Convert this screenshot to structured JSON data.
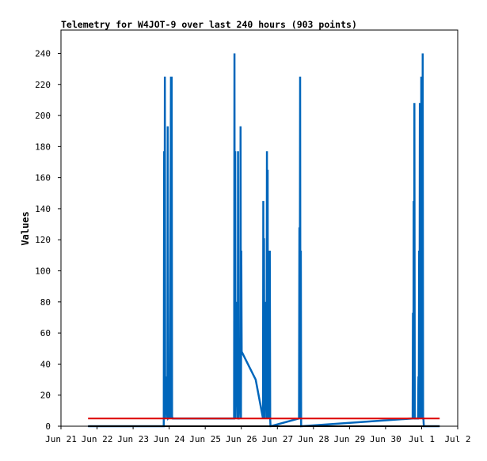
{
  "chart_data": {
    "type": "line",
    "title": "Telemetry for W4JOT-9 over last 240 hours (903 points)",
    "xlabel": "",
    "ylabel": "Values",
    "x_ticks": [
      "Jun 21",
      "Jun 22",
      "Jun 23",
      "Jun 24",
      "Jun 25",
      "Jun 26",
      "Jun 27",
      "Jun 28",
      "Jun 29",
      "Jun 30",
      "Jul 1",
      "Jul 2"
    ],
    "xlim": [
      "Jun 21 00:00",
      "Jul 2 00:00"
    ],
    "ylim": [
      0,
      255
    ],
    "y_ticks": [
      0,
      20,
      40,
      60,
      80,
      100,
      120,
      140,
      160,
      180,
      200,
      220,
      240
    ],
    "grid": false,
    "legend": "none",
    "series": [
      {
        "color": "#0066bb",
        "x_days": [
          21.75,
          23.85,
          23.86,
          23.87,
          23.88,
          23.89,
          23.9,
          23.95,
          23.96,
          23.97,
          24.02,
          24.05,
          24.06,
          24.07,
          24.08,
          24.1,
          25.8,
          25.81,
          25.82,
          25.83,
          25.84,
          25.85,
          25.9,
          25.91,
          25.92,
          25.93,
          25.97,
          25.98,
          25.99,
          26.0,
          26.01,
          26.4,
          26.6,
          26.61,
          26.62,
          26.63,
          26.64,
          26.65,
          26.7,
          26.71,
          26.72,
          26.73,
          26.74,
          26.75,
          26.78,
          26.79,
          26.8,
          26.81,
          26.82,
          27.6,
          27.61,
          27.62,
          27.63,
          27.64,
          27.65,
          27.66,
          30.75,
          30.76,
          30.77,
          30.78,
          30.79,
          30.8,
          30.81,
          30.9,
          30.91,
          30.92,
          30.93,
          30.94,
          30.95,
          30.96,
          30.97,
          30.98,
          30.99,
          31.0,
          31.01,
          31.02,
          31.03,
          31.04,
          31.05,
          31.06,
          31.5
        ],
        "values": [
          0,
          0,
          177,
          5,
          225,
          5,
          32,
          5,
          193,
          5,
          6,
          225,
          5,
          225,
          6,
          5,
          5,
          240,
          5,
          177,
          5,
          80,
          5,
          177,
          5,
          5,
          32,
          193,
          5,
          113,
          48,
          30,
          5,
          145,
          5,
          121,
          5,
          80,
          5,
          177,
          5,
          165,
          5,
          113,
          5,
          113,
          5,
          0,
          0,
          5,
          128,
          5,
          225,
          5,
          113,
          0,
          5,
          73,
          5,
          145,
          5,
          208,
          5,
          5,
          32,
          5,
          113,
          5,
          208,
          5,
          135,
          5,
          225,
          5,
          168,
          5,
          240,
          5,
          5,
          0,
          0
        ]
      },
      {
        "color": "#dd0000",
        "x_days": [
          21.75,
          31.5
        ],
        "values": [
          5,
          5
        ]
      },
      {
        "color": "#000000",
        "x_days": [
          21.75,
          31.5
        ],
        "values": [
          0,
          0
        ]
      }
    ]
  }
}
